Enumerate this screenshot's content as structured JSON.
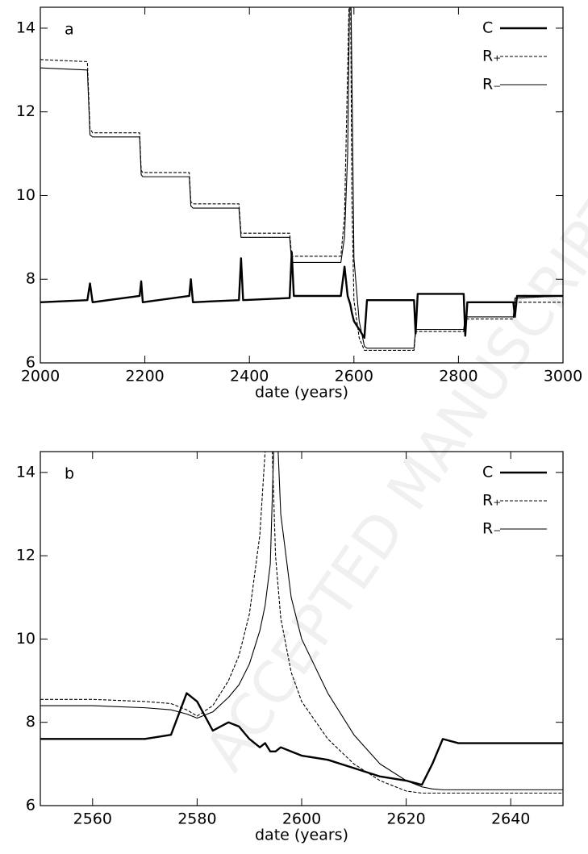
{
  "watermark": "ACCEPTED MANUSCRIPT",
  "chart_data": [
    {
      "type": "line",
      "annotation": "a",
      "x_label": "date (years)",
      "xlim": [
        2000,
        3000
      ],
      "xticks": [
        2000,
        2200,
        2400,
        2600,
        2800,
        3000
      ],
      "ylim": [
        6,
        14.5
      ],
      "yticks": [
        6,
        8,
        10,
        12,
        14
      ],
      "legend": "top-right",
      "x": [
        2000,
        2090,
        2095,
        2100,
        2190,
        2193,
        2196,
        2285,
        2288,
        2292,
        2380,
        2384,
        2388,
        2477,
        2481,
        2485,
        2575,
        2582,
        2588,
        2593,
        2596,
        2600,
        2610,
        2620,
        2625,
        2715,
        2718,
        2722,
        2810,
        2813,
        2817,
        2905,
        2908,
        2912,
        3000
      ],
      "series": [
        {
          "name": "C",
          "color": "#000000",
          "line_style": "thick",
          "values": [
            7.45,
            7.5,
            7.9,
            7.45,
            7.6,
            7.95,
            7.45,
            7.6,
            8.0,
            7.45,
            7.5,
            8.5,
            7.5,
            7.55,
            8.65,
            7.6,
            7.6,
            8.3,
            7.6,
            7.4,
            7.2,
            7.0,
            6.8,
            6.6,
            7.5,
            7.5,
            6.7,
            7.65,
            7.65,
            6.65,
            7.45,
            7.45,
            7.1,
            7.6,
            7.6
          ]
        },
        {
          "name": "R₊",
          "color": "#000000",
          "line_style": "dashed",
          "values": [
            13.25,
            13.2,
            11.6,
            11.5,
            11.5,
            10.6,
            10.55,
            10.55,
            9.85,
            9.8,
            9.8,
            9.1,
            9.1,
            9.1,
            8.55,
            8.55,
            8.55,
            9.5,
            13,
            16,
            10,
            7.5,
            6.6,
            6.3,
            6.3,
            6.3,
            6.75,
            6.75,
            6.75,
            7.05,
            7.05,
            7.05,
            7.45,
            7.45,
            7.45
          ]
        },
        {
          "name": "R₋",
          "color": "#000000",
          "line_style": "thin",
          "values": [
            13.05,
            13.0,
            11.45,
            11.4,
            11.4,
            10.5,
            10.45,
            10.45,
            9.75,
            9.7,
            9.7,
            9.0,
            9.0,
            9.0,
            8.4,
            8.4,
            8.4,
            9.0,
            11,
            16,
            13,
            8.5,
            7.0,
            6.4,
            6.35,
            6.35,
            6.8,
            6.8,
            6.8,
            7.1,
            7.1,
            7.1,
            7.55,
            7.55,
            7.6
          ]
        }
      ]
    },
    {
      "type": "line",
      "annotation": "b",
      "x_label": "date (years)",
      "xlim": [
        2550,
        2650
      ],
      "xticks": [
        2560,
        2580,
        2600,
        2620,
        2640
      ],
      "ylim": [
        6,
        14.5
      ],
      "yticks": [
        6,
        8,
        10,
        12,
        14
      ],
      "legend": "top-right",
      "x": [
        2550,
        2560,
        2570,
        2575,
        2578,
        2580,
        2583,
        2586,
        2588,
        2590,
        2592,
        2593,
        2594,
        2595,
        2596,
        2598,
        2600,
        2605,
        2610,
        2615,
        2620,
        2623,
        2625,
        2627,
        2630,
        2640,
        2650
      ],
      "series": [
        {
          "name": "C",
          "color": "#000000",
          "line_style": "thick",
          "values": [
            7.6,
            7.6,
            7.6,
            7.7,
            8.7,
            8.5,
            7.8,
            8.0,
            7.9,
            7.6,
            7.4,
            7.5,
            7.3,
            7.3,
            7.4,
            7.3,
            7.2,
            7.1,
            6.9,
            6.7,
            6.6,
            6.5,
            7.0,
            7.6,
            7.5,
            7.5,
            7.5
          ]
        },
        {
          "name": "R₊",
          "color": "#000000",
          "line_style": "dashed",
          "values": [
            8.55,
            8.55,
            8.5,
            8.45,
            8.3,
            8.15,
            8.4,
            9.0,
            9.6,
            10.6,
            12.5,
            14.5,
            16,
            12,
            10.5,
            9.2,
            8.5,
            7.6,
            7.0,
            6.6,
            6.35,
            6.3,
            6.3,
            6.3,
            6.3,
            6.3,
            6.3
          ]
        },
        {
          "name": "R₋",
          "color": "#000000",
          "line_style": "thin",
          "values": [
            8.4,
            8.4,
            8.35,
            8.3,
            8.2,
            8.1,
            8.25,
            8.6,
            8.9,
            9.4,
            10.2,
            10.8,
            11.8,
            16,
            13,
            11,
            10.0,
            8.7,
            7.7,
            7.0,
            6.6,
            6.45,
            6.4,
            6.38,
            6.38,
            6.38,
            6.38
          ]
        }
      ]
    }
  ]
}
